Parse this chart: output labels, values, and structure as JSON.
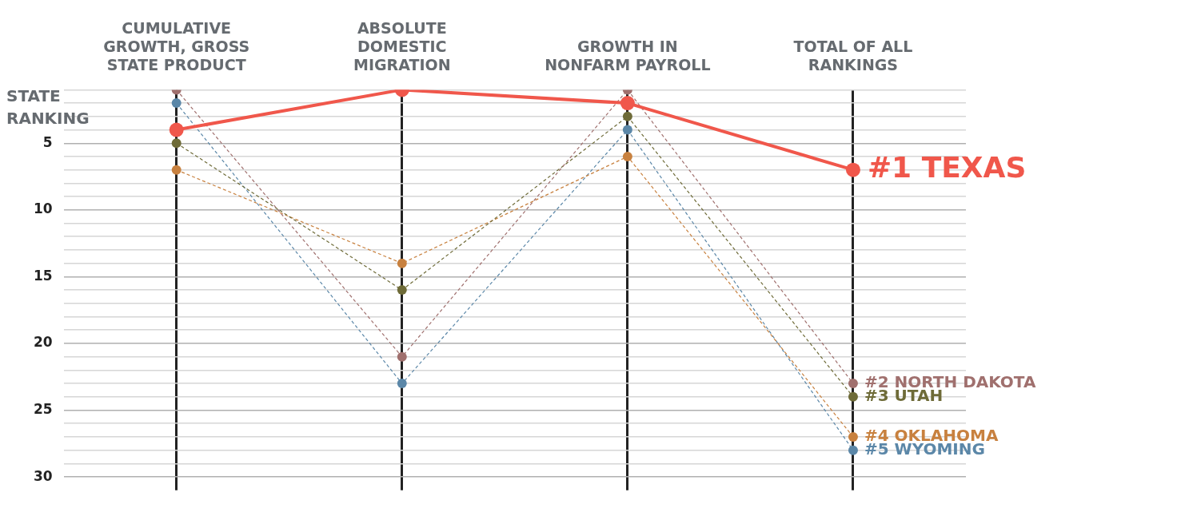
{
  "chart_data": {
    "type": "line",
    "ylabel": "STATE RANKING",
    "categories": [
      "CUMULATIVE GROWTH, GROSS STATE PRODUCT",
      "ABSOLUTE DOMESTIC MIGRATION",
      "GROWTH IN NONFARM PAYROLL",
      "TOTAL OF ALL RANKINGS"
    ],
    "series": [
      {
        "name": "#2 NORTH DAKOTA",
        "color": "#a0706e",
        "values": [
          1,
          21,
          1,
          23
        ],
        "line_style": "dashed"
      },
      {
        "name": "#3 UTAH",
        "color": "#6e6b38",
        "values": [
          5,
          16,
          3,
          24
        ],
        "line_style": "dashed"
      },
      {
        "name": "#4 OKLAHOMA",
        "color": "#c8813f",
        "values": [
          7,
          14,
          6,
          27
        ],
        "line_style": "dashed"
      },
      {
        "name": "#5 WYOMING",
        "color": "#5b87a8",
        "values": [
          2,
          23,
          4,
          28
        ],
        "line_style": "dashed"
      },
      {
        "name": "#1 TEXAS",
        "color": "#f0574b",
        "values": [
          4,
          1,
          2,
          7
        ],
        "line_style": "solid"
      }
    ],
    "ylim": [
      31,
      1
    ],
    "yticks": [
      {
        "value": 1,
        "label": null
      },
      {
        "value": 2,
        "label": null
      },
      {
        "value": 3,
        "label": null
      },
      {
        "value": 4,
        "label": null
      },
      5,
      {
        "value": 6,
        "label": null
      },
      {
        "value": 7,
        "label": null
      },
      {
        "value": 8,
        "label": null
      },
      {
        "value": 9,
        "label": null
      },
      10,
      {
        "value": 11,
        "label": null
      },
      {
        "value": 12,
        "label": null
      },
      {
        "value": 13,
        "label": null
      },
      {
        "value": 14,
        "label": null
      },
      15,
      {
        "value": 16,
        "label": null
      },
      {
        "value": 17,
        "label": null
      },
      {
        "value": 18,
        "label": null
      },
      {
        "value": 19,
        "label": null
      },
      20,
      {
        "value": 21,
        "label": null
      },
      {
        "value": 22,
        "label": null
      },
      {
        "value": 23,
        "label": null
      },
      {
        "value": 24,
        "label": null
      },
      25,
      {
        "value": 26,
        "label": null
      },
      {
        "value": 27,
        "label": null
      },
      {
        "value": 28,
        "label": null
      },
      {
        "value": 29,
        "label": null
      },
      30
    ],
    "grid": true,
    "legend": false,
    "marker": "circle"
  }
}
